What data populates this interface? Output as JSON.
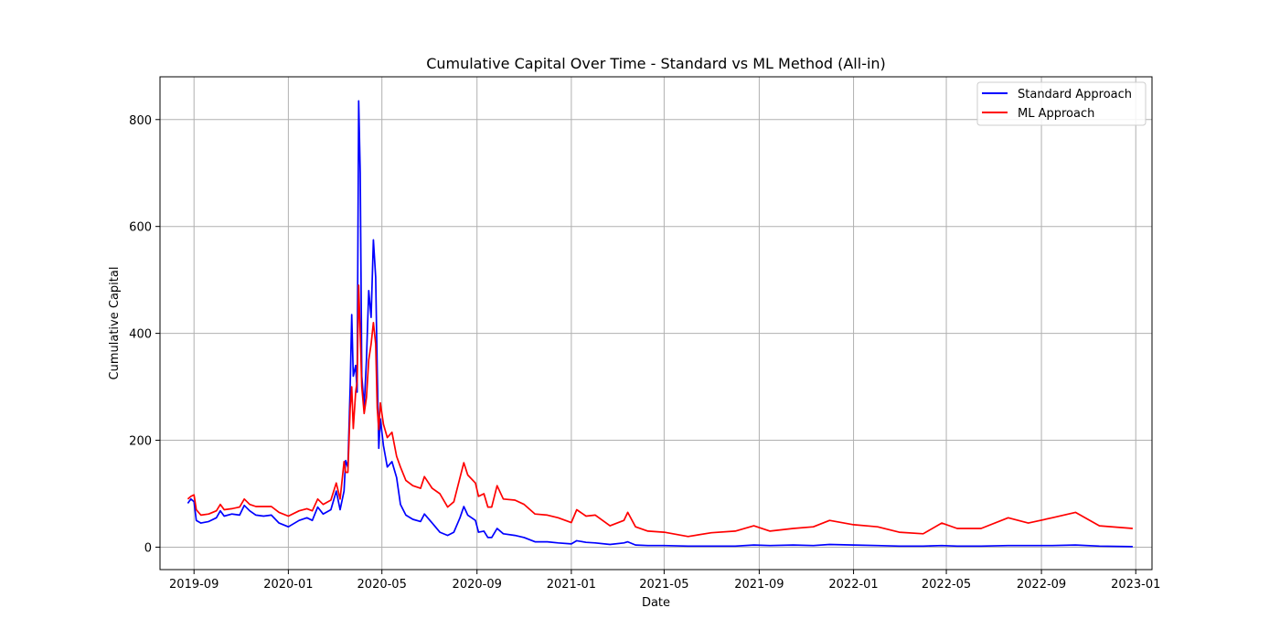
{
  "chart_data": {
    "type": "line",
    "title": "Cumulative Capital Over Time - Standard vs ML Method (All-in)",
    "xlabel": "Date",
    "ylabel": "Cumulative Capital",
    "x_type": "date",
    "xlim": [
      "2019-07-19",
      "2023-01-22"
    ],
    "ylim": [
      -42,
      880
    ],
    "x_ticks": [
      "2019-09-01",
      "2020-01-01",
      "2020-05-01",
      "2020-09-01",
      "2021-01-01",
      "2021-05-01",
      "2021-09-01",
      "2022-01-01",
      "2022-05-01",
      "2022-09-01",
      "2023-01-01"
    ],
    "x_tick_labels": [
      "2019-09",
      "2020-01",
      "2020-05",
      "2020-09",
      "2021-01",
      "2021-05",
      "2021-09",
      "2022-01",
      "2022-05",
      "2022-09",
      "2023-01"
    ],
    "y_ticks": [
      0,
      200,
      400,
      600,
      800
    ],
    "y_tick_labels": [
      "0",
      "200",
      "400",
      "600",
      "800"
    ],
    "grid": true,
    "legend_position": "top-right",
    "series": [
      {
        "name": "Standard Approach",
        "color": "#0000ff",
        "points": [
          [
            "2019-08-24",
            82
          ],
          [
            "2019-08-28",
            90
          ],
          [
            "2019-09-01",
            85
          ],
          [
            "2019-09-04",
            50
          ],
          [
            "2019-09-10",
            45
          ],
          [
            "2019-09-20",
            48
          ],
          [
            "2019-09-30",
            55
          ],
          [
            "2019-10-05",
            68
          ],
          [
            "2019-10-10",
            58
          ],
          [
            "2019-10-20",
            62
          ],
          [
            "2019-10-30",
            60
          ],
          [
            "2019-11-05",
            78
          ],
          [
            "2019-11-12",
            68
          ],
          [
            "2019-11-20",
            60
          ],
          [
            "2019-11-30",
            58
          ],
          [
            "2019-12-10",
            60
          ],
          [
            "2019-12-20",
            45
          ],
          [
            "2020-01-01",
            38
          ],
          [
            "2020-01-15",
            50
          ],
          [
            "2020-01-25",
            55
          ],
          [
            "2020-02-01",
            50
          ],
          [
            "2020-02-08",
            75
          ],
          [
            "2020-02-15",
            62
          ],
          [
            "2020-02-25",
            70
          ],
          [
            "2020-03-03",
            105
          ],
          [
            "2020-03-08",
            70
          ],
          [
            "2020-03-13",
            105
          ],
          [
            "2020-03-15",
            162
          ],
          [
            "2020-03-18",
            150
          ],
          [
            "2020-03-21",
            300
          ],
          [
            "2020-03-23",
            435
          ],
          [
            "2020-03-25",
            320
          ],
          [
            "2020-03-28",
            340
          ],
          [
            "2020-03-30",
            290
          ],
          [
            "2020-04-01",
            835
          ],
          [
            "2020-04-03",
            700
          ],
          [
            "2020-04-05",
            320
          ],
          [
            "2020-04-08",
            262
          ],
          [
            "2020-04-11",
            350
          ],
          [
            "2020-04-14",
            480
          ],
          [
            "2020-04-17",
            430
          ],
          [
            "2020-04-20",
            575
          ],
          [
            "2020-04-23",
            505
          ],
          [
            "2020-04-25",
            330
          ],
          [
            "2020-04-27",
            185
          ],
          [
            "2020-04-29",
            240
          ],
          [
            "2020-05-03",
            190
          ],
          [
            "2020-05-08",
            150
          ],
          [
            "2020-05-14",
            160
          ],
          [
            "2020-05-20",
            130
          ],
          [
            "2020-05-25",
            80
          ],
          [
            "2020-06-01",
            60
          ],
          [
            "2020-06-10",
            52
          ],
          [
            "2020-06-20",
            48
          ],
          [
            "2020-06-25",
            62
          ],
          [
            "2020-07-05",
            45
          ],
          [
            "2020-07-15",
            28
          ],
          [
            "2020-07-25",
            22
          ],
          [
            "2020-08-02",
            28
          ],
          [
            "2020-08-10",
            55
          ],
          [
            "2020-08-15",
            76
          ],
          [
            "2020-08-20",
            60
          ],
          [
            "2020-08-30",
            50
          ],
          [
            "2020-09-03",
            28
          ],
          [
            "2020-09-10",
            30
          ],
          [
            "2020-09-15",
            18
          ],
          [
            "2020-09-20",
            18
          ],
          [
            "2020-09-27",
            35
          ],
          [
            "2020-10-05",
            25
          ],
          [
            "2020-10-20",
            22
          ],
          [
            "2020-11-01",
            18
          ],
          [
            "2020-11-15",
            10
          ],
          [
            "2020-12-01",
            10
          ],
          [
            "2020-12-15",
            8
          ],
          [
            "2021-01-01",
            6
          ],
          [
            "2021-01-08",
            12
          ],
          [
            "2021-01-20",
            9
          ],
          [
            "2021-02-01",
            8
          ],
          [
            "2021-02-20",
            5
          ],
          [
            "2021-03-10",
            8
          ],
          [
            "2021-03-15",
            10
          ],
          [
            "2021-03-25",
            4
          ],
          [
            "2021-04-10",
            3
          ],
          [
            "2021-05-01",
            3
          ],
          [
            "2021-06-01",
            2
          ],
          [
            "2021-07-01",
            2
          ],
          [
            "2021-08-01",
            2
          ],
          [
            "2021-08-25",
            4
          ],
          [
            "2021-09-15",
            3
          ],
          [
            "2021-10-15",
            4
          ],
          [
            "2021-11-10",
            3
          ],
          [
            "2021-12-01",
            5
          ],
          [
            "2022-01-01",
            4
          ],
          [
            "2022-02-01",
            3
          ],
          [
            "2022-03-01",
            2
          ],
          [
            "2022-04-01",
            2
          ],
          [
            "2022-04-25",
            3
          ],
          [
            "2022-05-15",
            2
          ],
          [
            "2022-06-15",
            2
          ],
          [
            "2022-07-20",
            3
          ],
          [
            "2022-08-15",
            3
          ],
          [
            "2022-09-15",
            3
          ],
          [
            "2022-10-15",
            4
          ],
          [
            "2022-11-15",
            2
          ],
          [
            "2022-12-28",
            1
          ]
        ]
      },
      {
        "name": "ML Approach",
        "color": "#ff0000",
        "points": [
          [
            "2019-08-24",
            90
          ],
          [
            "2019-08-28",
            95
          ],
          [
            "2019-09-01",
            98
          ],
          [
            "2019-09-04",
            70
          ],
          [
            "2019-09-10",
            60
          ],
          [
            "2019-09-20",
            62
          ],
          [
            "2019-09-30",
            68
          ],
          [
            "2019-10-05",
            80
          ],
          [
            "2019-10-10",
            70
          ],
          [
            "2019-10-20",
            72
          ],
          [
            "2019-10-30",
            75
          ],
          [
            "2019-11-05",
            90
          ],
          [
            "2019-11-12",
            80
          ],
          [
            "2019-11-20",
            76
          ],
          [
            "2019-11-30",
            76
          ],
          [
            "2019-12-10",
            76
          ],
          [
            "2019-12-20",
            65
          ],
          [
            "2020-01-01",
            58
          ],
          [
            "2020-01-15",
            68
          ],
          [
            "2020-01-25",
            72
          ],
          [
            "2020-02-01",
            68
          ],
          [
            "2020-02-08",
            90
          ],
          [
            "2020-02-15",
            80
          ],
          [
            "2020-02-25",
            88
          ],
          [
            "2020-03-03",
            120
          ],
          [
            "2020-03-08",
            90
          ],
          [
            "2020-03-13",
            160
          ],
          [
            "2020-03-15",
            140
          ],
          [
            "2020-03-18",
            140
          ],
          [
            "2020-03-21",
            260
          ],
          [
            "2020-03-23",
            300
          ],
          [
            "2020-03-25",
            222
          ],
          [
            "2020-03-28",
            290
          ],
          [
            "2020-03-30",
            310
          ],
          [
            "2020-04-01",
            490
          ],
          [
            "2020-04-03",
            400
          ],
          [
            "2020-04-05",
            300
          ],
          [
            "2020-04-08",
            250
          ],
          [
            "2020-04-11",
            280
          ],
          [
            "2020-04-14",
            350
          ],
          [
            "2020-04-17",
            380
          ],
          [
            "2020-04-20",
            420
          ],
          [
            "2020-04-23",
            380
          ],
          [
            "2020-04-25",
            260
          ],
          [
            "2020-04-27",
            220
          ],
          [
            "2020-04-29",
            270
          ],
          [
            "2020-05-03",
            230
          ],
          [
            "2020-05-08",
            205
          ],
          [
            "2020-05-14",
            215
          ],
          [
            "2020-05-20",
            170
          ],
          [
            "2020-05-25",
            150
          ],
          [
            "2020-06-01",
            125
          ],
          [
            "2020-06-10",
            115
          ],
          [
            "2020-06-20",
            110
          ],
          [
            "2020-06-25",
            132
          ],
          [
            "2020-07-05",
            110
          ],
          [
            "2020-07-15",
            100
          ],
          [
            "2020-07-25",
            75
          ],
          [
            "2020-08-02",
            85
          ],
          [
            "2020-08-10",
            130
          ],
          [
            "2020-08-15",
            158
          ],
          [
            "2020-08-20",
            135
          ],
          [
            "2020-08-30",
            120
          ],
          [
            "2020-09-03",
            95
          ],
          [
            "2020-09-10",
            100
          ],
          [
            "2020-09-15",
            75
          ],
          [
            "2020-09-20",
            75
          ],
          [
            "2020-09-27",
            115
          ],
          [
            "2020-10-05",
            90
          ],
          [
            "2020-10-20",
            88
          ],
          [
            "2020-11-01",
            80
          ],
          [
            "2020-11-15",
            62
          ],
          [
            "2020-12-01",
            60
          ],
          [
            "2020-12-15",
            55
          ],
          [
            "2021-01-01",
            46
          ],
          [
            "2021-01-08",
            70
          ],
          [
            "2021-01-20",
            58
          ],
          [
            "2021-02-01",
            60
          ],
          [
            "2021-02-20",
            40
          ],
          [
            "2021-03-10",
            50
          ],
          [
            "2021-03-15",
            65
          ],
          [
            "2021-03-25",
            38
          ],
          [
            "2021-04-10",
            30
          ],
          [
            "2021-05-01",
            28
          ],
          [
            "2021-06-01",
            20
          ],
          [
            "2021-07-01",
            27
          ],
          [
            "2021-08-01",
            30
          ],
          [
            "2021-08-25",
            40
          ],
          [
            "2021-09-15",
            30
          ],
          [
            "2021-10-15",
            35
          ],
          [
            "2021-11-10",
            38
          ],
          [
            "2021-12-01",
            50
          ],
          [
            "2022-01-01",
            42
          ],
          [
            "2022-02-01",
            38
          ],
          [
            "2022-03-01",
            28
          ],
          [
            "2022-04-01",
            25
          ],
          [
            "2022-04-25",
            45
          ],
          [
            "2022-05-15",
            35
          ],
          [
            "2022-06-15",
            35
          ],
          [
            "2022-07-20",
            55
          ],
          [
            "2022-08-15",
            45
          ],
          [
            "2022-09-15",
            55
          ],
          [
            "2022-10-15",
            65
          ],
          [
            "2022-11-15",
            40
          ],
          [
            "2022-12-28",
            35
          ]
        ]
      }
    ]
  }
}
